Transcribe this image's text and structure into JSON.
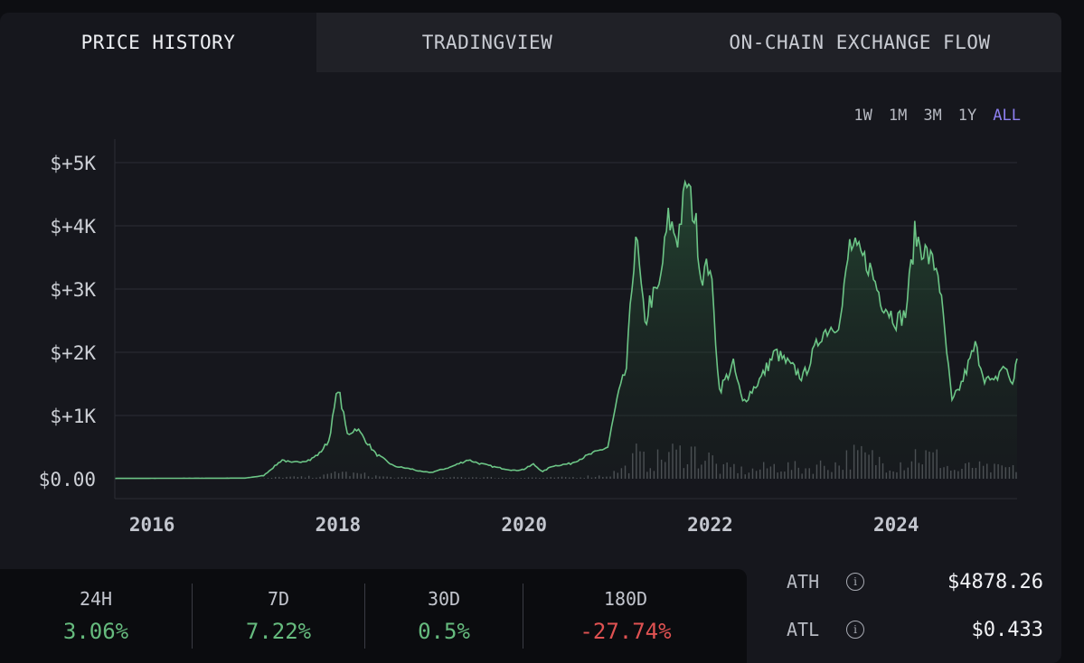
{
  "tabs": [
    {
      "label": "PRICE HISTORY",
      "active": true
    },
    {
      "label": "TRADINGVIEW",
      "active": false
    },
    {
      "label": "ON-CHAIN EXCHANGE FLOW",
      "active": false
    }
  ],
  "ranges": [
    "1W",
    "1M",
    "3M",
    "1Y",
    "ALL"
  ],
  "selected_range": "ALL",
  "colors": {
    "line": "#6cc586",
    "positive": "#66bb7e",
    "negative": "#e05252",
    "accent": "#8d7ff0",
    "volume": "#8a8d93"
  },
  "chart_data": {
    "type": "area",
    "x_ticks": [
      "2016",
      "2018",
      "2020",
      "2022",
      "2024"
    ],
    "x_tick_values": [
      2016,
      2018,
      2020,
      2022,
      2024
    ],
    "xlim": [
      2015.6,
      2025.3
    ],
    "ylim": [
      0,
      5000
    ],
    "y_ticks": [
      "$0.00",
      "$+1K",
      "$+2K",
      "$+3K",
      "$+4K",
      "$+5K"
    ],
    "y_tick_values": [
      0,
      1000,
      2000,
      3000,
      4000,
      5000
    ],
    "grid": true,
    "series": [
      {
        "x": [
          2015.6,
          2016.5,
          2017.0,
          2017.2,
          2017.4,
          2017.5,
          2017.7,
          2017.8,
          2017.9,
          2018.0,
          2018.1,
          2018.2,
          2018.3,
          2018.4,
          2018.6,
          2018.8,
          2018.9,
          2019.0,
          2019.2,
          2019.4,
          2019.5,
          2019.7,
          2019.9,
          2020.0,
          2020.1,
          2020.2,
          2020.3,
          2020.5,
          2020.7,
          2020.9,
          2021.0,
          2021.1,
          2021.2,
          2021.3,
          2021.35,
          2021.45,
          2021.55,
          2021.65,
          2021.75,
          2021.85,
          2021.9,
          2022.0,
          2022.1,
          2022.25,
          2022.35,
          2022.45,
          2022.55,
          2022.7,
          2022.85,
          2023.0,
          2023.2,
          2023.4,
          2023.5,
          2023.7,
          2023.85,
          2024.0,
          2024.1,
          2024.2,
          2024.35,
          2024.45,
          2024.6,
          2024.7,
          2024.85,
          2024.95,
          2025.05,
          2025.15,
          2025.25,
          2025.3
        ],
        "y": [
          5,
          8,
          10,
          50,
          300,
          250,
          300,
          400,
          600,
          1450,
          700,
          800,
          600,
          400,
          200,
          150,
          110,
          100,
          180,
          300,
          250,
          180,
          130,
          150,
          230,
          110,
          200,
          240,
          380,
          500,
          1250,
          1750,
          3900,
          2400,
          2800,
          3000,
          4100,
          3800,
          4700,
          4000,
          3200,
          3400,
          1400,
          1800,
          1200,
          1400,
          1600,
          2000,
          1800,
          1600,
          2300,
          2500,
          3700,
          3400,
          2800,
          2500,
          2600,
          3850,
          3500,
          3300,
          1200,
          1500,
          2100,
          1600,
          1500,
          1800,
          1500,
          1900
        ]
      }
    ]
  },
  "stats": [
    {
      "label": "24H",
      "value": "3.06%",
      "sign": "pos"
    },
    {
      "label": "7D",
      "value": "7.22%",
      "sign": "pos"
    },
    {
      "label": "30D",
      "value": "0.5%",
      "sign": "pos"
    },
    {
      "label": "180D",
      "value": "-27.74%",
      "sign": "neg"
    }
  ],
  "ath": {
    "label": "ATH",
    "value": "$4878.26"
  },
  "atl": {
    "label": "ATL",
    "value": "$0.433"
  }
}
